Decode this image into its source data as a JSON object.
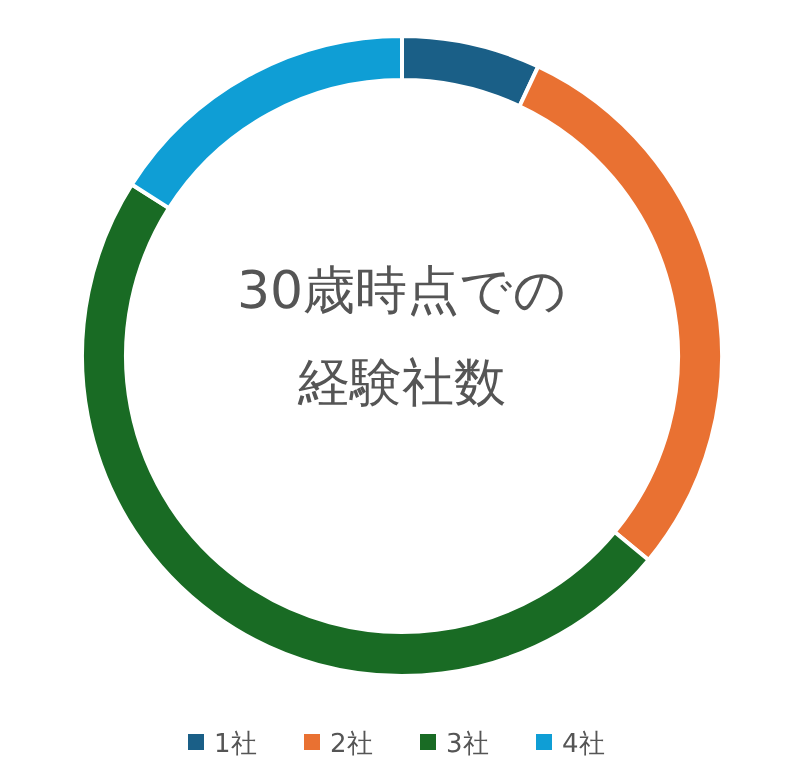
{
  "chart_data": {
    "type": "donut",
    "title": "30歳時点での",
    "subtitle": "経験社数",
    "categories": [
      "1社",
      "2社",
      "3社",
      "4社"
    ],
    "values": [
      7,
      29,
      48,
      16
    ],
    "colors": [
      "#1a5f87",
      "#e97132",
      "#196b24",
      "#0f9ed5"
    ],
    "legend": "bottom"
  }
}
